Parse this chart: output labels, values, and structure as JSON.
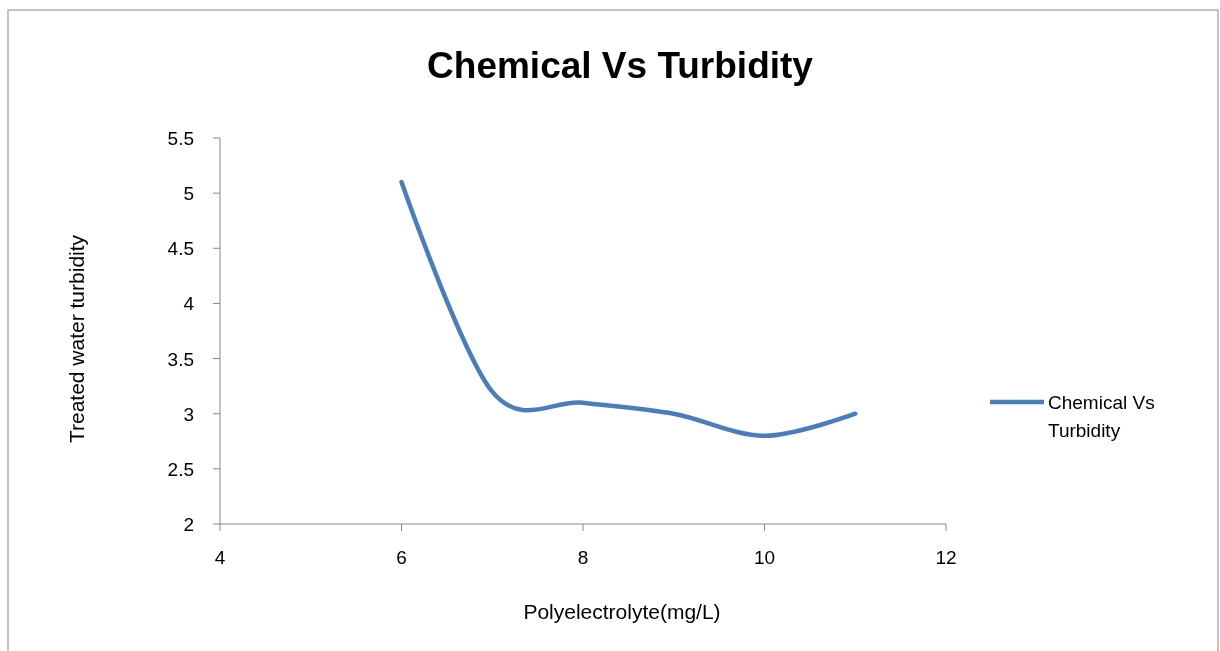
{
  "chart_data": {
    "type": "line",
    "title": "Chemical Vs Turbidity",
    "xlabel": "Polyelectrolyte(mg/L)",
    "ylabel": "Treated  water turbidity",
    "x": [
      6,
      7,
      8,
      9,
      10,
      11
    ],
    "series": [
      {
        "name": "Chemical Vs Turbidity",
        "color": "#4a7ebb",
        "values": [
          5.1,
          3.2,
          3.1,
          3.0,
          2.8,
          3.0
        ]
      }
    ],
    "xlim": [
      4,
      12
    ],
    "xticks": [
      4,
      6,
      8,
      10,
      12
    ],
    "ylim": [
      2,
      5.5
    ],
    "yticks": [
      2,
      2.5,
      3,
      3.5,
      4,
      4.5,
      5,
      5.5
    ],
    "grid": false,
    "legend": "right",
    "marker": "none",
    "line_style": "solid"
  }
}
